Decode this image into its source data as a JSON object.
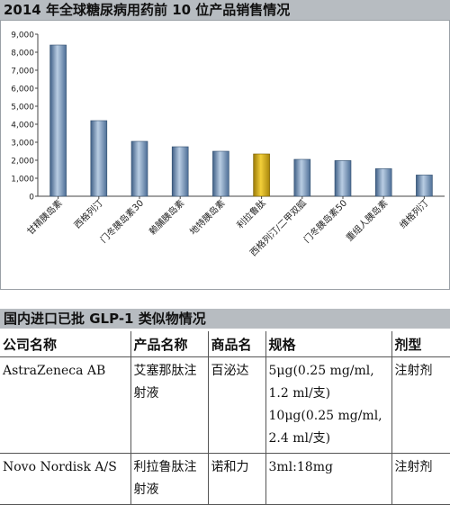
{
  "chart_data": {
    "type": "bar",
    "title": "2014 年全球糖尿病用药前 10 位产品销售情况",
    "categories": [
      "甘精胰岛素",
      "西格列汀",
      "门冬胰岛素30",
      "赖脯胰岛素",
      "地特胰岛素",
      "利拉鲁肽",
      "西格列汀/二甲双胍",
      "门冬胰岛素50",
      "重组人胰岛素",
      "维格列汀"
    ],
    "values": [
      8400,
      4200,
      3050,
      2750,
      2500,
      2350,
      2050,
      1980,
      1530,
      1180
    ],
    "yticks": [
      "0",
      "1,000",
      "2,000",
      "3,000",
      "4,000",
      "5,000",
      "6,000",
      "7,000",
      "8,000",
      "9,000"
    ],
    "ylim": [
      0,
      9000
    ],
    "highlight_category": "利拉鲁肽",
    "colors": {
      "bar": "#6f8fb3",
      "highlight": "#c9a21c"
    },
    "grid": false,
    "xlabel": "",
    "ylabel": ""
  },
  "table": {
    "title": "国内进口已批 GLP-1 类似物情况",
    "headers": [
      "公司名称",
      "产品名称",
      "商品名",
      "规格",
      "剂型"
    ],
    "rows": [
      {
        "company": "AstraZeneca AB",
        "product": "艾塞那肽注射液",
        "brand": "百泌达",
        "spec": [
          "5μg(0.25 mg/ml,",
          "1.2 ml/支)",
          "10μg(0.25 mg/ml,",
          "2.4 ml/支)"
        ],
        "form": "注射剂"
      },
      {
        "company": "Novo Nordisk A/S",
        "product": "利拉鲁肽注射液",
        "brand": "诺和力",
        "spec": [
          "3ml:18mg"
        ],
        "form": "注射剂"
      }
    ]
  }
}
